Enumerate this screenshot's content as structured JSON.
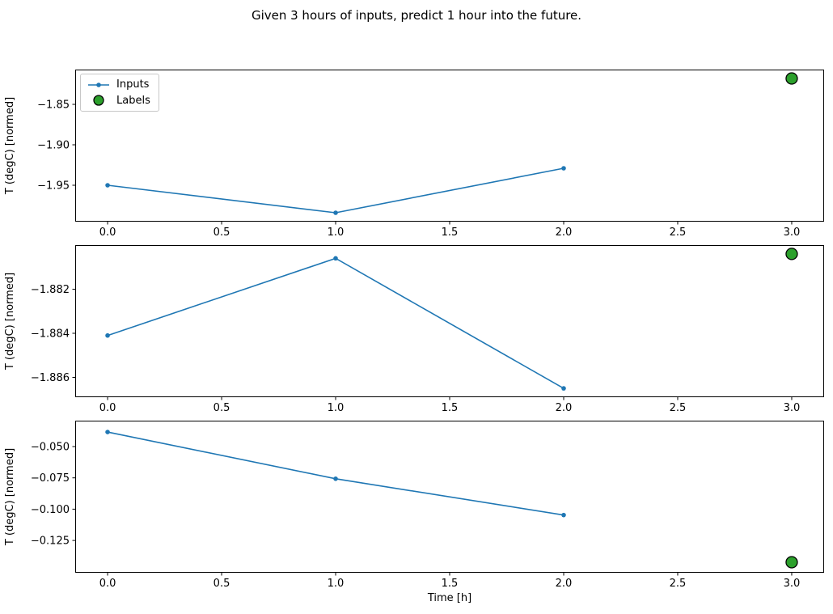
{
  "figure": {
    "title": "Given 3 hours of inputs, predict 1 hour into the future.",
    "background": "#ffffff"
  },
  "legend": {
    "items": [
      {
        "label": "Inputs",
        "marker": "line-with-dot",
        "color": "#1f77b4"
      },
      {
        "label": "Labels",
        "marker": "filled-circle",
        "color": "#2ca02c",
        "edge_color": "#000000"
      }
    ]
  },
  "chart_data": [
    {
      "type": "line",
      "title": "",
      "xlabel": "",
      "ylabel": "T (degC) [normed]",
      "xlim": [
        -0.142,
        3.142
      ],
      "ylim": [
        -1.995,
        -1.807
      ],
      "xticks": [
        0.0,
        0.5,
        1.0,
        1.5,
        2.0,
        2.5,
        3.0
      ],
      "xtick_labels": [
        "0.0",
        "0.5",
        "1.0",
        "1.5",
        "2.0",
        "2.5",
        "3.0"
      ],
      "yticks": [
        -1.85,
        -1.9,
        -1.95
      ],
      "ytick_labels": [
        "−1.85",
        "−1.90",
        "−1.95"
      ],
      "grid": false,
      "legend": true,
      "series": [
        {
          "name": "Inputs",
          "kind": "line",
          "color": "#1f77b4",
          "x": [
            0,
            1,
            2
          ],
          "y": [
            -1.95,
            -1.984,
            -1.929
          ]
        },
        {
          "name": "Labels",
          "kind": "scatter",
          "color": "#2ca02c",
          "edge_color": "#000000",
          "x": [
            3
          ],
          "y": [
            -1.818
          ]
        }
      ]
    },
    {
      "type": "line",
      "title": "",
      "xlabel": "",
      "ylabel": "T (degC) [normed]",
      "xlim": [
        -0.142,
        3.142
      ],
      "ylim": [
        -1.8869,
        -1.88
      ],
      "xticks": [
        0.0,
        0.5,
        1.0,
        1.5,
        2.0,
        2.5,
        3.0
      ],
      "xtick_labels": [
        "0.0",
        "0.5",
        "1.0",
        "1.5",
        "2.0",
        "2.5",
        "3.0"
      ],
      "yticks": [
        -1.882,
        -1.884,
        -1.886
      ],
      "ytick_labels": [
        "−1.882",
        "−1.884",
        "−1.886"
      ],
      "grid": false,
      "legend": false,
      "series": [
        {
          "name": "Inputs",
          "kind": "line",
          "color": "#1f77b4",
          "x": [
            0,
            1,
            2
          ],
          "y": [
            -1.8841,
            -1.8806,
            -1.8865
          ]
        },
        {
          "name": "Labels",
          "kind": "scatter",
          "color": "#2ca02c",
          "edge_color": "#000000",
          "x": [
            3
          ],
          "y": [
            -1.8804
          ]
        }
      ]
    },
    {
      "type": "line",
      "title": "",
      "xlabel": "Time [h]",
      "ylabel": "T (degC) [normed]",
      "xlim": [
        -0.142,
        3.142
      ],
      "ylim": [
        -0.1508,
        -0.0293
      ],
      "xticks": [
        0.0,
        0.5,
        1.0,
        1.5,
        2.0,
        2.5,
        3.0
      ],
      "xtick_labels": [
        "0.0",
        "0.5",
        "1.0",
        "1.5",
        "2.0",
        "2.5",
        "3.0"
      ],
      "yticks": [
        -0.05,
        -0.075,
        -0.1,
        -0.125
      ],
      "ytick_labels": [
        "−0.050",
        "−0.075",
        "−0.100",
        "−0.125"
      ],
      "grid": false,
      "legend": false,
      "series": [
        {
          "name": "Inputs",
          "kind": "line",
          "color": "#1f77b4",
          "x": [
            0,
            1,
            2
          ],
          "y": [
            -0.0384,
            -0.0757,
            -0.1047
          ]
        },
        {
          "name": "Labels",
          "kind": "scatter",
          "color": "#2ca02c",
          "edge_color": "#000000",
          "x": [
            3
          ],
          "y": [
            -0.1424
          ]
        }
      ]
    }
  ]
}
